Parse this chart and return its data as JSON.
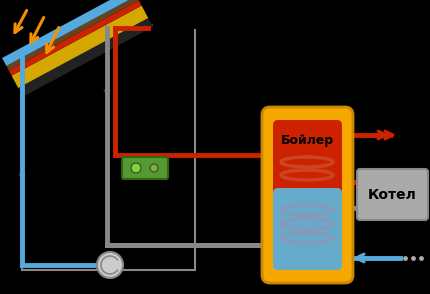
{
  "bg_color": "#000000",
  "pipe_red": "#cc2200",
  "pipe_blue": "#55aadd",
  "pipe_gray": "#888888",
  "panel_yellow": "#d4a800",
  "panel_red": "#cc2200",
  "panel_brown": "#664422",
  "panel_blue": "#55aadd",
  "panel_dark": "#222222",
  "boiler_outer": "#f5a800",
  "boiler_red_zone": "#cc2200",
  "boiler_blue_zone": "#66aacc",
  "coil_red": "#cc4422",
  "coil_blue": "#8899bb",
  "controller_green": "#559933",
  "controller_green_light": "#88cc44",
  "pump_fill": "#cccccc",
  "pump_edge": "#888888",
  "kotel_box": "#aaaaaa",
  "house_outline": "#888888",
  "arrow_sun": "#f59000",
  "text_boiler": "Бойлер",
  "text_kotel": "Котел"
}
